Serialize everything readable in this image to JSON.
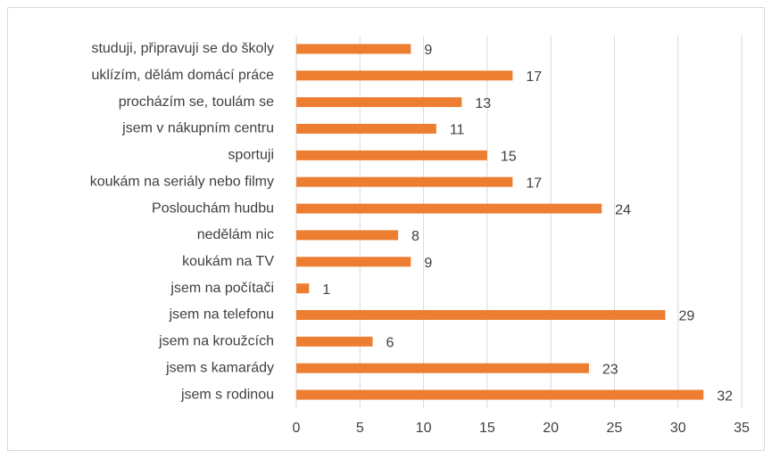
{
  "chart_data": {
    "type": "barh",
    "categories": [
      "studuji, připravuji se do školy",
      "uklízím, dělám domácí práce",
      "procházím se, toulám se",
      "jsem v nákupním centru",
      "sportuji",
      "koukám na seriály nebo filmy",
      "Poslouchám hudbu",
      "nedělám nic",
      "koukám na TV",
      "jsem na počítači",
      "jsem na telefonu",
      "jsem na kroužcích",
      "jsem s kamarády",
      "jsem s rodinou"
    ],
    "values": [
      9,
      17,
      13,
      11,
      15,
      17,
      24,
      8,
      9,
      1,
      29,
      6,
      23,
      32
    ],
    "color": "#ed7d31",
    "xlim": [
      0,
      35
    ],
    "xticks": [
      0,
      5,
      10,
      15,
      20,
      25,
      30,
      35
    ],
    "grid": true
  }
}
